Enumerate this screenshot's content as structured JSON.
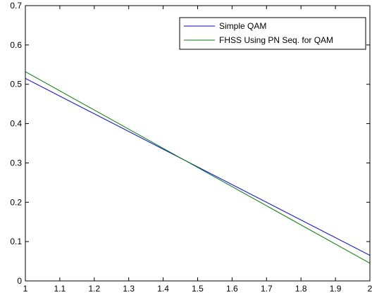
{
  "chart_data": {
    "type": "line",
    "title": "",
    "xlabel": "",
    "ylabel": "",
    "xlim": [
      1,
      2
    ],
    "ylim": [
      0,
      0.7
    ],
    "xticks": [
      1,
      1.1,
      1.2,
      1.3,
      1.4,
      1.5,
      1.6,
      1.7,
      1.8,
      1.9,
      2
    ],
    "xtick_labels": [
      "1",
      "1.1",
      "1.2",
      "1.3",
      "1.4",
      "1.5",
      "1.6",
      "1.7",
      "1.8",
      "1.9",
      "2"
    ],
    "yticks": [
      0,
      0.1,
      0.2,
      0.3,
      0.4,
      0.5,
      0.6,
      0.7
    ],
    "ytick_labels": [
      "0",
      "0.1",
      "0.2",
      "0.3",
      "0.4",
      "0.5",
      "0.6",
      "0.7"
    ],
    "grid": false,
    "legend_position": "top-right",
    "series": [
      {
        "name": "Simple QAM",
        "color": "#0000ff",
        "x": [
          1,
          2
        ],
        "y": [
          0.515,
          0.065
        ]
      },
      {
        "name": "FHSS Using PN Seq. for QAM",
        "color": "#008000",
        "x": [
          1,
          2
        ],
        "y": [
          0.532,
          0.045
        ]
      }
    ]
  }
}
